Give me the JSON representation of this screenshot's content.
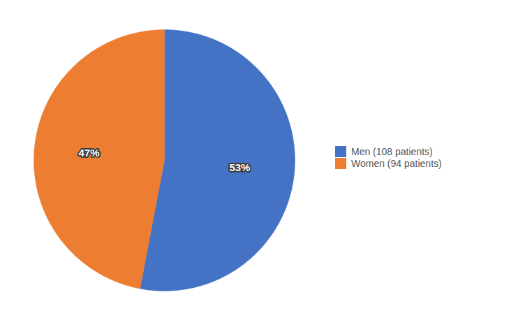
{
  "chart_data": {
    "type": "pie",
    "categories": [
      "Men (108 patients)",
      "Women (94 patients)"
    ],
    "values": [
      53,
      47
    ],
    "value_labels": [
      "53%",
      "47%"
    ],
    "colors": [
      "#4472C4",
      "#ED7D31"
    ],
    "data_labels": true,
    "legend": "right"
  }
}
